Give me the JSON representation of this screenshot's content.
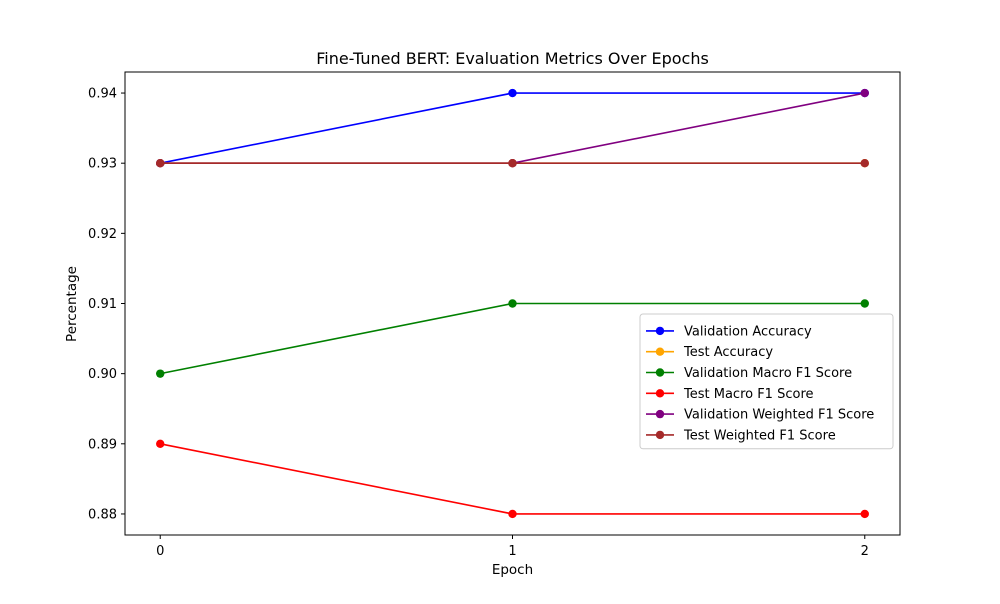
{
  "chart_data": {
    "type": "line",
    "title": "Fine-Tuned BERT: Evaluation Metrics Over Epochs",
    "xlabel": "Epoch",
    "ylabel": "Percentage",
    "x": [
      0,
      1,
      2
    ],
    "x_ticks": [
      "0",
      "1",
      "2"
    ],
    "y_ticks": [
      "0.88",
      "0.89",
      "0.90",
      "0.91",
      "0.92",
      "0.93",
      "0.94"
    ],
    "ylim": [
      0.877,
      0.943
    ],
    "xlim": [
      -0.1,
      2.1
    ],
    "grid": false,
    "legend_position": "center-right",
    "series": [
      {
        "name": "Validation Accuracy",
        "color": "#0000ff",
        "values": [
          0.93,
          0.94,
          0.94
        ]
      },
      {
        "name": "Test Accuracy",
        "color": "#ffa500",
        "values": [
          0.93,
          0.93,
          0.93
        ]
      },
      {
        "name": "Validation Macro F1 Score",
        "color": "#008000",
        "values": [
          0.9,
          0.91,
          0.91
        ]
      },
      {
        "name": "Test Macro F1 Score",
        "color": "#ff0000",
        "values": [
          0.89,
          0.88,
          0.88
        ]
      },
      {
        "name": "Validation Weighted F1 Score",
        "color": "#800080",
        "values": [
          0.93,
          0.93,
          0.94
        ]
      },
      {
        "name": "Test Weighted F1 Score",
        "color": "#a52a2a",
        "values": [
          0.93,
          0.93,
          0.93
        ]
      }
    ]
  }
}
